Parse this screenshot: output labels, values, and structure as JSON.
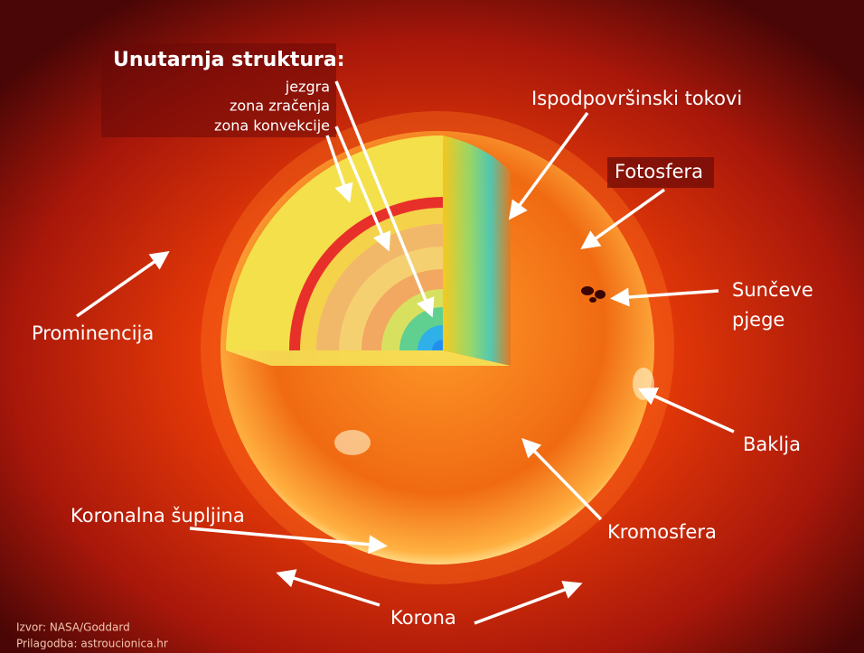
{
  "title": "Unutarnja struktura:",
  "inner_layers": [
    "jezgra",
    "zona zračenja",
    "zona konvekcije"
  ],
  "labels": {
    "subsurface_flows": "Ispodpovršinski tokovi",
    "photosphere": "Fotosfera",
    "sunspots": [
      "Sunčeve",
      "pjege"
    ],
    "prominence": "Prominencija",
    "flare": "Baklja",
    "coronal_hole": "Koronalna šupljina",
    "chromosphere": "Kromosfera",
    "corona": "Korona"
  },
  "credits": [
    "Izvor: NASA/Goddard",
    "Prilagodba: astroucionica.hr"
  ]
}
